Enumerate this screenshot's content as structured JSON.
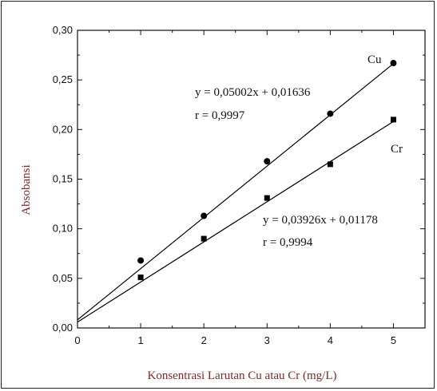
{
  "chart_data": {
    "type": "scatter",
    "title": "",
    "xlabel": "Konsentrasi Larutan Cu atau Cr (mg/L)",
    "ylabel": "Absobansi",
    "xlim": [
      0,
      5.5
    ],
    "ylim": [
      0,
      0.3
    ],
    "x_ticks": [
      0,
      1,
      2,
      3,
      4,
      5
    ],
    "x_tick_labels": [
      "0",
      "1",
      "2",
      "3",
      "4",
      "5"
    ],
    "y_ticks": [
      0,
      0.05,
      0.1,
      0.15,
      0.2,
      0.25,
      0.3
    ],
    "y_tick_labels": [
      "0,00",
      "0,05",
      "0,10",
      "0,15",
      "0,20",
      "0,25",
      "0,30"
    ],
    "grid": false,
    "series": [
      {
        "name": "Cu",
        "marker": "circle",
        "color": "#000000",
        "x": [
          1,
          2,
          3,
          4,
          5
        ],
        "y": [
          0.068,
          0.113,
          0.168,
          0.216,
          0.267
        ],
        "fit": {
          "slope": 0.05002,
          "intercept": 0.01636
        },
        "equation": "y = 0,05002x + 0,01636",
        "r_label": "r = 0,9997"
      },
      {
        "name": "Cr",
        "marker": "square",
        "color": "#000000",
        "x": [
          1,
          2,
          3,
          4,
          5
        ],
        "y": [
          0.051,
          0.09,
          0.131,
          0.165,
          0.21
        ],
        "fit": {
          "slope": 0.03926,
          "intercept": 0.01178
        },
        "equation": "y = 0,03926x + 0,01178",
        "r_label": "r = 0,9994"
      }
    ]
  }
}
